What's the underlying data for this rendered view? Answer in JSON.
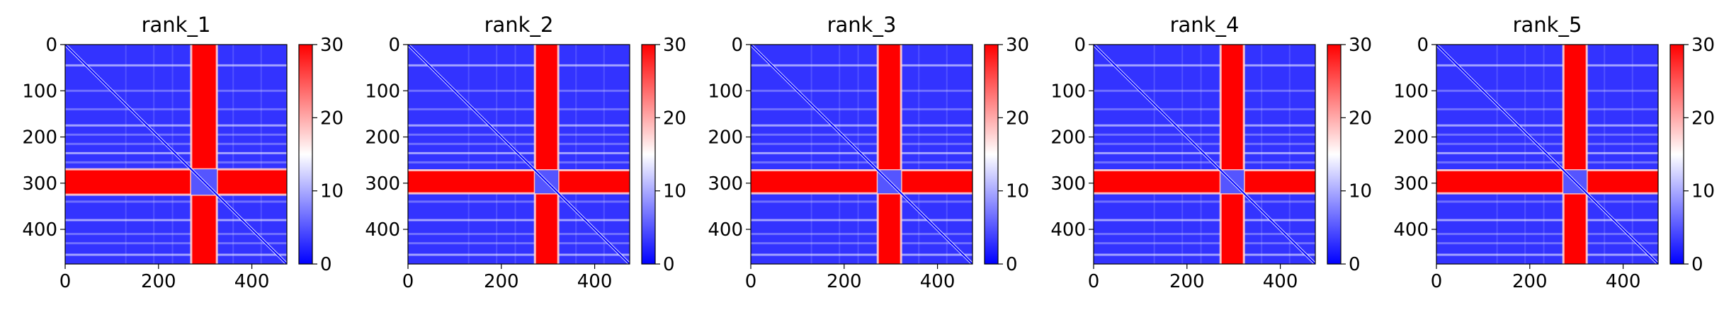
{
  "colorbar": {
    "colormap": "bwr",
    "vmin": 0,
    "vmax": 30,
    "ticks": [
      "0",
      "10",
      "20",
      "30"
    ],
    "colors": [
      "#0000ff",
      "#ffffff",
      "#ff0000"
    ]
  },
  "chart_data": [
    {
      "type": "heatmap",
      "title": "rank_1",
      "xlim": [
        0,
        475
      ],
      "ylim": [
        475,
        0
      ],
      "x_ticks": [
        "0",
        "200",
        "400"
      ],
      "y_ticks": [
        "0",
        "100",
        "200",
        "300",
        "400"
      ],
      "band": {
        "start": 270,
        "end": 325,
        "value": 30
      },
      "background_value": 3,
      "diagonal_value": 0
    },
    {
      "type": "heatmap",
      "title": "rank_2",
      "xlim": [
        0,
        475
      ],
      "ylim": [
        475,
        0
      ],
      "x_ticks": [
        "0",
        "200",
        "400"
      ],
      "y_ticks": [
        "0",
        "100",
        "200",
        "300",
        "400"
      ],
      "band": {
        "start": 272,
        "end": 322,
        "value": 30
      },
      "background_value": 3,
      "diagonal_value": 0
    },
    {
      "type": "heatmap",
      "title": "rank_3",
      "xlim": [
        0,
        475
      ],
      "ylim": [
        475,
        0
      ],
      "x_ticks": [
        "0",
        "200",
        "400"
      ],
      "y_ticks": [
        "0",
        "100",
        "200",
        "300",
        "400"
      ],
      "band": {
        "start": 272,
        "end": 322,
        "value": 30
      },
      "background_value": 3,
      "diagonal_value": 0
    },
    {
      "type": "heatmap",
      "title": "rank_4",
      "xlim": [
        0,
        475
      ],
      "ylim": [
        475,
        0
      ],
      "x_ticks": [
        "0",
        "200",
        "400"
      ],
      "y_ticks": [
        "0",
        "100",
        "200",
        "300",
        "400"
      ],
      "band": {
        "start": 272,
        "end": 322,
        "value": 30
      },
      "background_value": 3,
      "diagonal_value": 0
    },
    {
      "type": "heatmap",
      "title": "rank_5",
      "xlim": [
        0,
        475
      ],
      "ylim": [
        475,
        0
      ],
      "x_ticks": [
        "0",
        "200",
        "400"
      ],
      "y_ticks": [
        "0",
        "100",
        "200",
        "300",
        "400"
      ],
      "band": {
        "start": 272,
        "end": 322,
        "value": 30
      },
      "background_value": 3,
      "diagonal_value": 0
    }
  ]
}
